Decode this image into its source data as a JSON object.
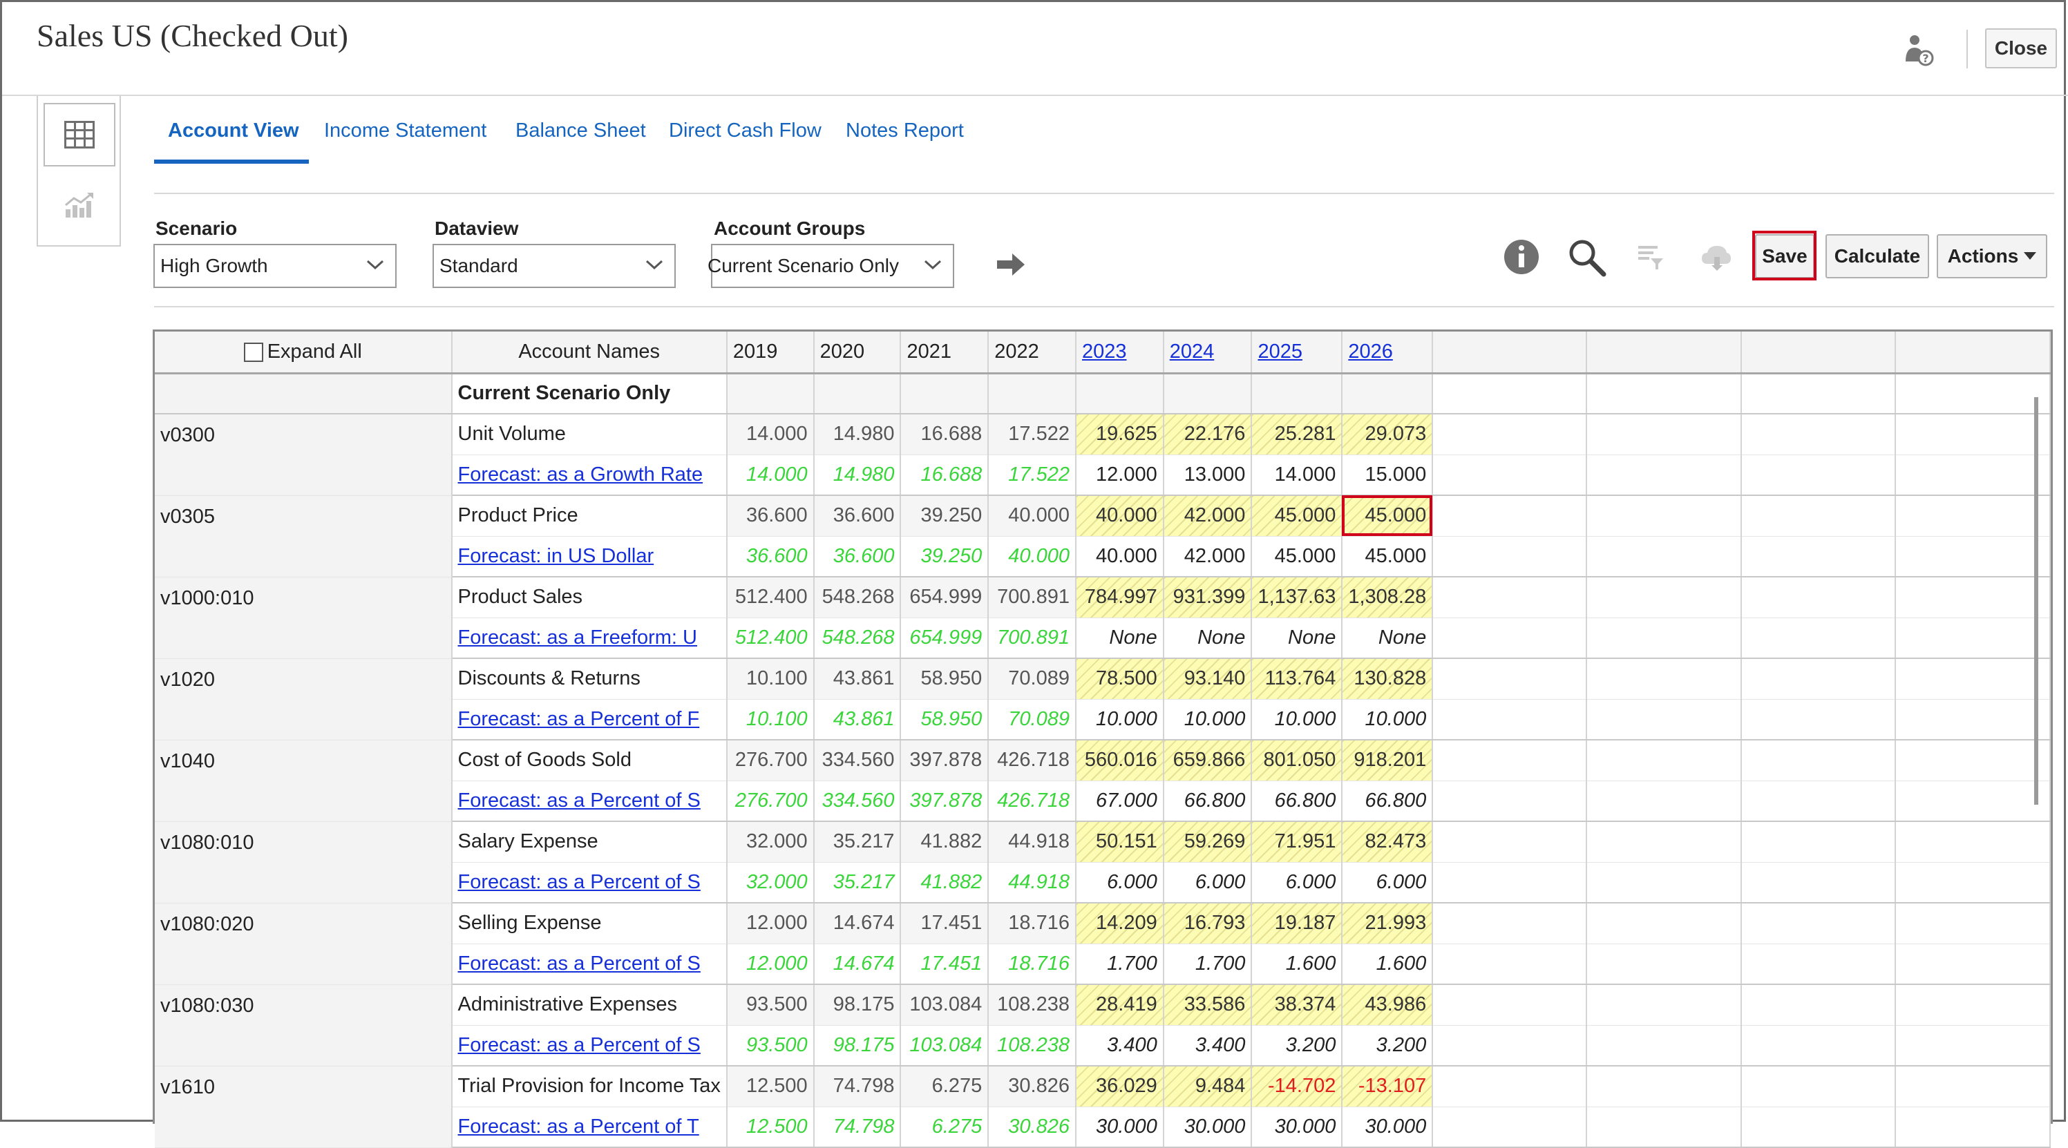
{
  "window": {
    "title": "Sales US (Checked Out)",
    "close_label": "Close"
  },
  "sidebar": {
    "items": [
      {
        "icon": "grid-view-icon"
      },
      {
        "icon": "chart-icon"
      }
    ]
  },
  "tabs": [
    {
      "label": "Account View",
      "active": true
    },
    {
      "label": "Income Statement"
    },
    {
      "label": "Balance Sheet"
    },
    {
      "label": "Direct Cash Flow"
    },
    {
      "label": "Notes Report"
    }
  ],
  "filters": {
    "scenario": {
      "label": "Scenario",
      "value": "High Growth"
    },
    "dataview": {
      "label": "Dataview",
      "value": "Standard"
    },
    "account_groups": {
      "label": "Account Groups",
      "value": "Current Scenario Only"
    }
  },
  "toolbar": {
    "save_label": "Save",
    "calculate_label": "Calculate",
    "actions_label": "Actions"
  },
  "grid": {
    "expand_all_label": "Expand All",
    "account_names_header": "Account Names",
    "years": [
      "2019",
      "2020",
      "2021",
      "2022",
      "2023",
      "2024",
      "2025",
      "2026"
    ],
    "group_label": "Current Scenario Only",
    "rows": [
      {
        "code": "v0300",
        "name": "Unit Volume",
        "values": [
          "14.000",
          "14.980",
          "16.688",
          "17.522",
          "19.625",
          "22.176",
          "25.281",
          "29.073"
        ],
        "method": "Forecast: as a Growth Rate",
        "method_values": [
          "14.000",
          "14.980",
          "16.688",
          "17.522",
          "12.000",
          "13.000",
          "14.000",
          "15.000"
        ]
      },
      {
        "code": "v0305",
        "name": "Product Price",
        "values": [
          "36.600",
          "36.600",
          "39.250",
          "40.000",
          "40.000",
          "42.000",
          "45.000",
          "45.000"
        ],
        "method": "Forecast: in US Dollar",
        "method_values": [
          "36.600",
          "36.600",
          "39.250",
          "40.000",
          "40.000",
          "42.000",
          "45.000",
          "45.000"
        ]
      },
      {
        "code": "v1000:010",
        "name": "Product Sales",
        "values": [
          "512.400",
          "548.268",
          "654.999",
          "700.891",
          "784.997",
          "931.399",
          "1,137.63",
          "1,308.28"
        ],
        "method": "Forecast: as a Freeform: U",
        "method_values": [
          "512.400",
          "548.268",
          "654.999",
          "700.891",
          "None",
          "None",
          "None",
          "None"
        ]
      },
      {
        "code": "v1020",
        "name": "Discounts & Returns",
        "values": [
          "10.100",
          "43.861",
          "58.950",
          "70.089",
          "78.500",
          "93.140",
          "113.764",
          "130.828"
        ],
        "method": "Forecast: as a Percent of F",
        "method_values": [
          "10.100",
          "43.861",
          "58.950",
          "70.089",
          "10.000",
          "10.000",
          "10.000",
          "10.000"
        ]
      },
      {
        "code": "v1040",
        "name": "Cost of Goods Sold",
        "values": [
          "276.700",
          "334.560",
          "397.878",
          "426.718",
          "560.016",
          "659.866",
          "801.050",
          "918.201"
        ],
        "method": "Forecast: as a Percent of S",
        "method_values": [
          "276.700",
          "334.560",
          "397.878",
          "426.718",
          "67.000",
          "66.800",
          "66.800",
          "66.800"
        ]
      },
      {
        "code": "v1080:010",
        "name": "Salary Expense",
        "values": [
          "32.000",
          "35.217",
          "41.882",
          "44.918",
          "50.151",
          "59.269",
          "71.951",
          "82.473"
        ],
        "method": "Forecast: as a Percent of S",
        "method_values": [
          "32.000",
          "35.217",
          "41.882",
          "44.918",
          "6.000",
          "6.000",
          "6.000",
          "6.000"
        ]
      },
      {
        "code": "v1080:020",
        "name": "Selling Expense",
        "values": [
          "12.000",
          "14.674",
          "17.451",
          "18.716",
          "14.209",
          "16.793",
          "19.187",
          "21.993"
        ],
        "method": "Forecast: as a Percent of S",
        "method_values": [
          "12.000",
          "14.674",
          "17.451",
          "18.716",
          "1.700",
          "1.700",
          "1.600",
          "1.600"
        ]
      },
      {
        "code": "v1080:030",
        "name": "Administrative Expenses",
        "values": [
          "93.500",
          "98.175",
          "103.084",
          "108.238",
          "28.419",
          "33.586",
          "38.374",
          "43.986"
        ],
        "method": "Forecast: as a Percent of S",
        "method_values": [
          "93.500",
          "98.175",
          "103.084",
          "108.238",
          "3.400",
          "3.400",
          "3.200",
          "3.200"
        ]
      },
      {
        "code": "v1610",
        "name": "Trial Provision for Income Tax",
        "values": [
          "12.500",
          "74.798",
          "6.275",
          "30.826",
          "36.029",
          "9.484",
          "-14.702",
          "-13.107"
        ],
        "method": "Forecast: as a Percent of T",
        "method_values": [
          "12.500",
          "74.798",
          "6.275",
          "30.826",
          "30.000",
          "30.000",
          "30.000",
          "30.000"
        ]
      }
    ]
  },
  "colors": {
    "accent": "#1565c0",
    "link": "#1530d8",
    "highlight": "#d0021b",
    "forecast_fill": "#fdfcb4",
    "history_green": "#3ad53a",
    "negative": "#e11d1d"
  }
}
